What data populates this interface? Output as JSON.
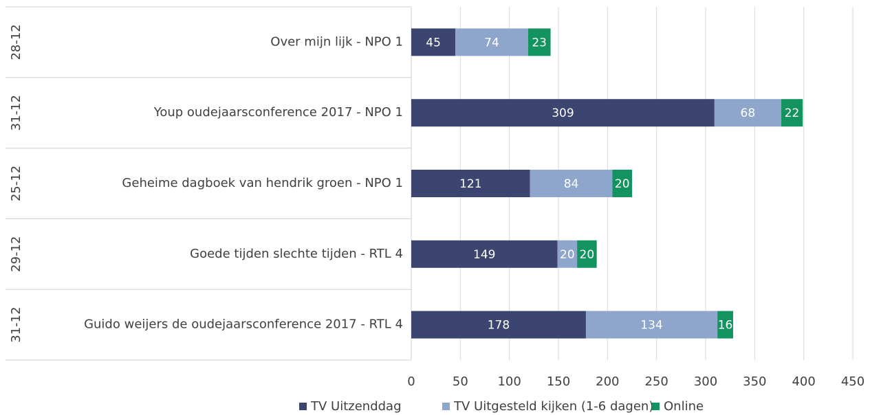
{
  "chart_data": {
    "type": "stacked-bar-horizontal",
    "categories": [
      "Over mijn lijk - NPO 1",
      "Youp oudejaarsconference 2017  - NPO 1",
      "Geheime dagboek van hendrik groen - NPO 1",
      "Goede tijden slechte tijden - RTL 4",
      "Guido weijers de oudejaarsconference 2017 - RTL 4"
    ],
    "dates": [
      "28-12",
      "31-12",
      "25-12",
      "29-12",
      "31-12"
    ],
    "series": [
      {
        "name": "TV Uitzenddag",
        "color": "#3b4570",
        "values": [
          45,
          309,
          121,
          149,
          178
        ]
      },
      {
        "name": "TV Uitgesteld kijken (1-6 dagen)",
        "color": "#8fa6cc",
        "values": [
          74,
          68,
          84,
          20,
          134
        ]
      },
      {
        "name": "Online",
        "color": "#13935f",
        "values": [
          23,
          22,
          20,
          20,
          16
        ]
      }
    ],
    "xlim": [
      0,
      450
    ],
    "xticks": [
      0,
      50,
      100,
      150,
      200,
      250,
      300,
      350,
      400,
      450
    ],
    "grid": true,
    "legend": "bottom"
  }
}
